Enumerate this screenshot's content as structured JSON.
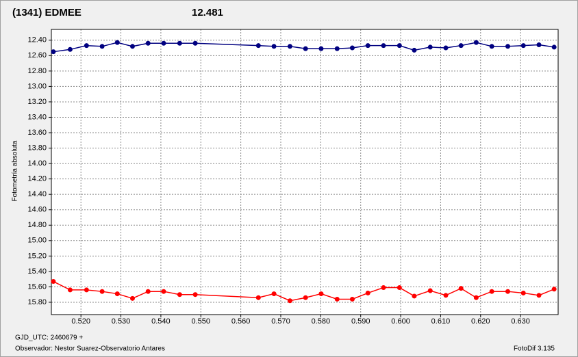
{
  "chart_data": {
    "type": "line",
    "title": "(1341) EDMEE",
    "title_color": "#e00000",
    "subtitle": "12.481",
    "subtitle_color": "#0a1f8f",
    "ylabel": "Fotometría absoluta",
    "xlabel": "GJD_UTC: 2460679 +",
    "observer": "Observador: Nestor Suarez-Observatorio Antares",
    "software": "FotoDif 3.135",
    "xlim": [
      0.5126,
      0.6394
    ],
    "ylim": [
      12.26,
      15.96
    ],
    "y_reversed": true,
    "grid": true,
    "xticks": [
      {
        "value": 0.52,
        "label": "0.520"
      },
      {
        "value": 0.53,
        "label": "0.530"
      },
      {
        "value": 0.54,
        "label": "0.540"
      },
      {
        "value": 0.55,
        "label": "0.550"
      },
      {
        "value": 0.56,
        "label": "0.560"
      },
      {
        "value": 0.57,
        "label": "0.570"
      },
      {
        "value": 0.58,
        "label": "0.580"
      },
      {
        "value": 0.59,
        "label": "0.590"
      },
      {
        "value": 0.6,
        "label": "0.600"
      },
      {
        "value": 0.61,
        "label": "0.610"
      },
      {
        "value": 0.62,
        "label": "0.620"
      },
      {
        "value": 0.63,
        "label": "0.630"
      }
    ],
    "yticks": [
      {
        "value": 12.4,
        "label": "12.40"
      },
      {
        "value": 12.6,
        "label": "12.60"
      },
      {
        "value": 12.8,
        "label": "12.80"
      },
      {
        "value": 13.0,
        "label": "13.00"
      },
      {
        "value": 13.2,
        "label": "13.20"
      },
      {
        "value": 13.4,
        "label": "13.40"
      },
      {
        "value": 13.6,
        "label": "13.60"
      },
      {
        "value": 13.8,
        "label": "13.80"
      },
      {
        "value": 14.0,
        "label": "14.00"
      },
      {
        "value": 14.2,
        "label": "14.20"
      },
      {
        "value": 14.4,
        "label": "14.40"
      },
      {
        "value": 14.6,
        "label": "14.60"
      },
      {
        "value": 14.8,
        "label": "14.80"
      },
      {
        "value": 15.0,
        "label": "15.00"
      },
      {
        "value": 15.2,
        "label": "15.20"
      },
      {
        "value": 15.4,
        "label": "15.40"
      },
      {
        "value": 15.6,
        "label": "15.60"
      },
      {
        "value": 15.8,
        "label": "15.80"
      }
    ],
    "x": [
      0.5131,
      0.5173,
      0.5214,
      0.5253,
      0.5291,
      0.5329,
      0.5368,
      0.5407,
      0.5447,
      0.5486,
      0.5644,
      0.5683,
      0.5723,
      0.5762,
      0.5801,
      0.5841,
      0.5879,
      0.5918,
      0.5957,
      0.5997,
      0.6034,
      0.6074,
      0.6113,
      0.6151,
      0.6189,
      0.6228,
      0.6268,
      0.6307,
      0.6346,
      0.6384
    ],
    "series": [
      {
        "color": "#000080",
        "values": [
          12.55,
          12.52,
          12.47,
          12.48,
          12.43,
          12.48,
          12.44,
          12.44,
          12.44,
          12.44,
          12.47,
          12.48,
          12.48,
          12.51,
          12.51,
          12.51,
          12.5,
          12.47,
          12.47,
          12.47,
          12.53,
          12.49,
          12.5,
          12.47,
          12.43,
          12.48,
          12.48,
          12.47,
          12.46,
          12.49
        ]
      },
      {
        "color": "#ff0000",
        "values": [
          15.53,
          15.64,
          15.64,
          15.66,
          15.69,
          15.75,
          15.66,
          15.66,
          15.7,
          15.7,
          15.74,
          15.69,
          15.78,
          15.74,
          15.69,
          15.76,
          15.76,
          15.68,
          15.61,
          15.61,
          15.72,
          15.65,
          15.71,
          15.62,
          15.74,
          15.66,
          15.66,
          15.68,
          15.71,
          15.63
        ]
      }
    ]
  }
}
